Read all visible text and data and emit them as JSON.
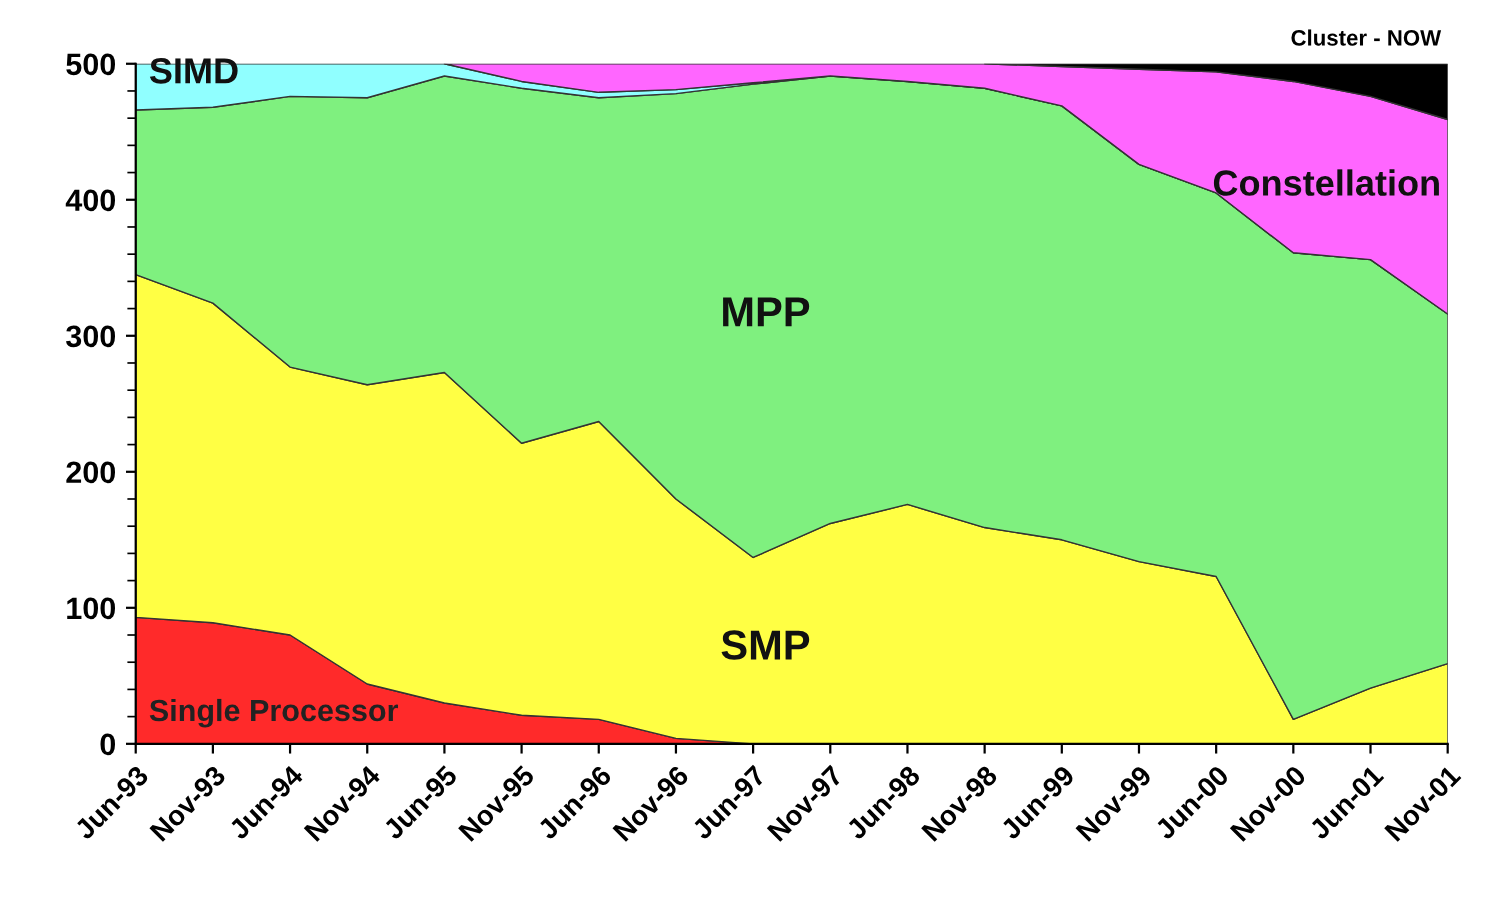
{
  "chart_data": {
    "type": "area",
    "stacked": true,
    "categories": [
      "Jun-93",
      "Nov-93",
      "Jun-94",
      "Nov-94",
      "Jun-95",
      "Nov-95",
      "Jun-96",
      "Nov-96",
      "Jun-97",
      "Nov-97",
      "Jun-98",
      "Nov-98",
      "Jun-99",
      "Nov-99",
      "Jun-00",
      "Nov-00",
      "Jun-01",
      "Nov-01"
    ],
    "series": [
      {
        "name": "Single Processor",
        "color": "#ff2a2a",
        "values": [
          93,
          89,
          80,
          44,
          30,
          21,
          18,
          4,
          0,
          0,
          0,
          0,
          0,
          0,
          0,
          0,
          0,
          0
        ]
      },
      {
        "name": "SMP",
        "color": "#ffff44",
        "values": [
          252,
          235,
          197,
          220,
          243,
          200,
          219,
          176,
          137,
          162,
          176,
          159,
          150,
          134,
          123,
          18,
          41,
          59
        ]
      },
      {
        "name": "MPP",
        "color": "#7ff07f",
        "values": [
          121,
          144,
          199,
          211,
          218,
          261,
          238,
          298,
          348,
          329,
          311,
          323,
          319,
          292,
          282,
          343,
          315,
          257
        ]
      },
      {
        "name": "SIMD",
        "color": "#90ffff",
        "values": [
          34,
          32,
          24,
          25,
          9,
          5,
          4,
          3,
          1,
          0,
          0,
          0,
          0,
          0,
          0,
          0,
          0,
          0
        ]
      },
      {
        "name": "Constellation",
        "color": "#ff66ff",
        "values": [
          null,
          null,
          null,
          null,
          0,
          13,
          21,
          19,
          14,
          9,
          13,
          18,
          29,
          70,
          89,
          126,
          120,
          143
        ]
      },
      {
        "name": "Cluster - NOW",
        "color": "#000000",
        "values": [
          null,
          null,
          null,
          null,
          null,
          null,
          null,
          null,
          null,
          null,
          null,
          0,
          2,
          4,
          6,
          13,
          24,
          41
        ]
      }
    ],
    "ylim": [
      0,
      500
    ],
    "yticks": [
      0,
      100,
      200,
      300,
      400,
      500
    ],
    "grid": false,
    "legend": false
  }
}
